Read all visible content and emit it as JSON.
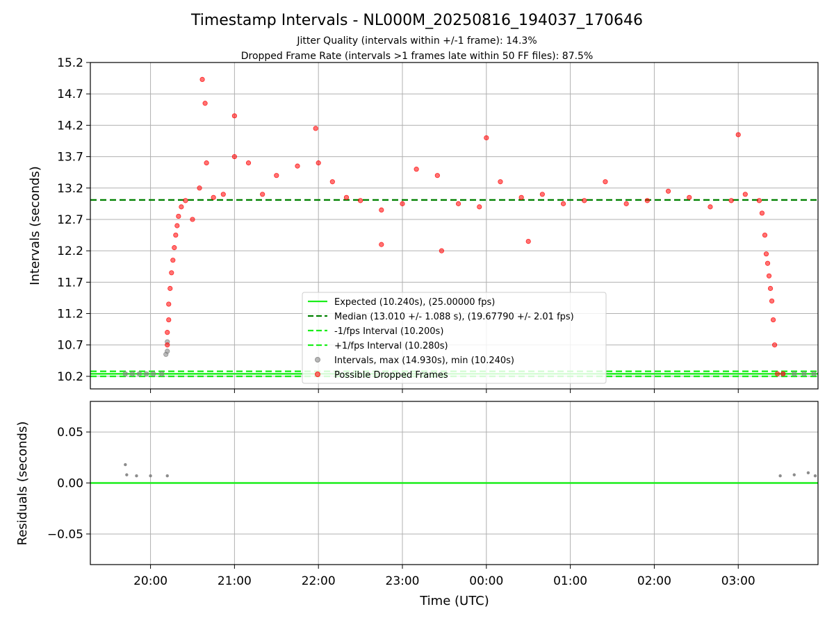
{
  "chart_data": [
    {
      "type": "scatter",
      "title": "Timestamp Intervals - NL000M_20250816_194037_170646",
      "subtitles": [
        "Jitter Quality (intervals within +/-1 frame): 14.3%",
        "Dropped Frame Rate (intervals >1 frames late within 50 FF files): 87.5%"
      ],
      "ylabel": "Intervals (seconds)",
      "ylim": [
        10.0,
        15.2
      ],
      "y_ticks": [
        "10.2",
        "10.7",
        "11.2",
        "11.7",
        "12.2",
        "12.7",
        "13.2",
        "13.7",
        "14.2",
        "14.7",
        "15.2"
      ],
      "xlim": [
        "19:17",
        "03:57"
      ],
      "grid": true,
      "legend_position": "lower center",
      "reference_lines": [
        {
          "label": "Expected (10.240s), (25.00000 fps)",
          "y": 10.24,
          "style": "solid",
          "color": "#1aee1a"
        },
        {
          "label": "Median (13.010 +/- 1.088 s), (19.67790 +/- 2.01 fps)",
          "y": 13.01,
          "style": "dashed",
          "color": "#008000"
        },
        {
          "label": "-1/fps Interval (10.200s)",
          "y": 10.2,
          "style": "dashed",
          "color": "#1aee1a"
        },
        {
          "label": "+1/fps Interval (10.280s)",
          "y": 10.28,
          "style": "dashed",
          "color": "#1aee1a"
        }
      ],
      "series": [
        {
          "name": "Intervals, max (14.930s), min (10.240s)",
          "color": "#808080",
          "points": [
            {
              "x": "19:42",
              "y": 10.24
            },
            {
              "x": "19:47",
              "y": 10.24
            },
            {
              "x": "19:52",
              "y": 10.24
            },
            {
              "x": "19:57",
              "y": 10.24
            },
            {
              "x": "20:02",
              "y": 10.24
            },
            {
              "x": "20:08",
              "y": 10.24
            },
            {
              "x": "20:11",
              "y": 10.55
            },
            {
              "x": "20:12",
              "y": 10.6
            },
            {
              "x": "20:12",
              "y": 10.75
            },
            {
              "x": "03:32",
              "y": 10.24
            },
            {
              "x": "03:40",
              "y": 10.24
            },
            {
              "x": "03:47",
              "y": 10.24
            },
            {
              "x": "03:54",
              "y": 10.24
            }
          ]
        },
        {
          "name": "Possible Dropped Frames",
          "color": "#ff0000",
          "points": [
            {
              "x": "20:12",
              "y": 10.7
            },
            {
              "x": "20:12",
              "y": 10.9
            },
            {
              "x": "20:13",
              "y": 11.1
            },
            {
              "x": "20:13",
              "y": 11.35
            },
            {
              "x": "20:14",
              "y": 11.6
            },
            {
              "x": "20:15",
              "y": 11.85
            },
            {
              "x": "20:16",
              "y": 12.05
            },
            {
              "x": "20:17",
              "y": 12.25
            },
            {
              "x": "20:18",
              "y": 12.45
            },
            {
              "x": "20:19",
              "y": 12.6
            },
            {
              "x": "20:20",
              "y": 12.75
            },
            {
              "x": "20:22",
              "y": 12.9
            },
            {
              "x": "20:25",
              "y": 13.0
            },
            {
              "x": "20:30",
              "y": 12.7
            },
            {
              "x": "20:35",
              "y": 13.2
            },
            {
              "x": "20:40",
              "y": 13.6
            },
            {
              "x": "20:45",
              "y": 13.05
            },
            {
              "x": "20:52",
              "y": 13.1
            },
            {
              "x": "21:00",
              "y": 13.7
            },
            {
              "x": "21:10",
              "y": 13.6
            },
            {
              "x": "21:20",
              "y": 13.1
            },
            {
              "x": "21:30",
              "y": 13.4
            },
            {
              "x": "21:45",
              "y": 13.55
            },
            {
              "x": "22:00",
              "y": 13.6
            },
            {
              "x": "22:10",
              "y": 13.3
            },
            {
              "x": "22:20",
              "y": 13.05
            },
            {
              "x": "22:30",
              "y": 13.0
            },
            {
              "x": "22:45",
              "y": 12.85
            },
            {
              "x": "23:00",
              "y": 12.95
            },
            {
              "x": "23:10",
              "y": 13.5
            },
            {
              "x": "23:25",
              "y": 13.4
            },
            {
              "x": "23:40",
              "y": 12.95
            },
            {
              "x": "23:55",
              "y": 12.9
            },
            {
              "x": "00:10",
              "y": 13.3
            },
            {
              "x": "00:25",
              "y": 13.05
            },
            {
              "x": "00:40",
              "y": 13.1
            },
            {
              "x": "00:55",
              "y": 12.95
            },
            {
              "x": "01:10",
              "y": 13.0
            },
            {
              "x": "01:25",
              "y": 13.3
            },
            {
              "x": "01:40",
              "y": 12.95
            },
            {
              "x": "01:55",
              "y": 13.0
            },
            {
              "x": "02:10",
              "y": 13.15
            },
            {
              "x": "02:25",
              "y": 13.05
            },
            {
              "x": "02:40",
              "y": 12.9
            },
            {
              "x": "02:55",
              "y": 13.0
            },
            {
              "x": "03:05",
              "y": 13.1
            },
            {
              "x": "03:15",
              "y": 13.0
            },
            {
              "x": "03:17",
              "y": 12.8
            },
            {
              "x": "03:19",
              "y": 12.45
            },
            {
              "x": "03:20",
              "y": 12.15
            },
            {
              "x": "03:21",
              "y": 12.0
            },
            {
              "x": "03:22",
              "y": 11.8
            },
            {
              "x": "03:23",
              "y": 11.6
            },
            {
              "x": "03:24",
              "y": 11.4
            },
            {
              "x": "03:25",
              "y": 11.1
            },
            {
              "x": "03:26",
              "y": 10.7
            },
            {
              "x": "03:28",
              "y": 10.24
            },
            {
              "x": "03:32",
              "y": 10.24
            }
          ]
        }
      ],
      "outliers": [
        {
          "x": "20:37",
          "y": 14.93
        },
        {
          "x": "20:39",
          "y": 14.55
        },
        {
          "x": "21:00",
          "y": 14.35
        },
        {
          "x": "21:58",
          "y": 14.15
        },
        {
          "x": "00:00",
          "y": 14.0
        },
        {
          "x": "03:00",
          "y": 14.05
        },
        {
          "x": "22:45",
          "y": 12.3
        },
        {
          "x": "23:28",
          "y": 12.2
        },
        {
          "x": "00:30",
          "y": 12.35
        }
      ]
    },
    {
      "type": "scatter",
      "ylabel": "Residuals (seconds)",
      "xlabel": "Time (UTC)",
      "ylim": [
        -0.08,
        0.08
      ],
      "y_ticks": [
        "0.05",
        "0.00",
        "−0.05"
      ],
      "x_ticks": [
        "20:00",
        "21:00",
        "22:00",
        "23:00",
        "00:00",
        "01:00",
        "02:00",
        "03:00"
      ],
      "grid": true,
      "reference_lines": [
        {
          "label": "zero",
          "y": 0.0,
          "style": "solid",
          "color": "#1aee1a"
        }
      ],
      "series": [
        {
          "name": "",
          "color": "#808080",
          "points": [
            {
              "x": "19:42",
              "y": 0.018
            },
            {
              "x": "19:43",
              "y": 0.008
            },
            {
              "x": "19:50",
              "y": 0.007
            },
            {
              "x": "20:00",
              "y": 0.007
            },
            {
              "x": "20:12",
              "y": 0.007
            },
            {
              "x": "03:30",
              "y": 0.007
            },
            {
              "x": "03:40",
              "y": 0.008
            },
            {
              "x": "03:50",
              "y": 0.01
            },
            {
              "x": "03:55",
              "y": 0.007
            }
          ]
        }
      ]
    }
  ]
}
